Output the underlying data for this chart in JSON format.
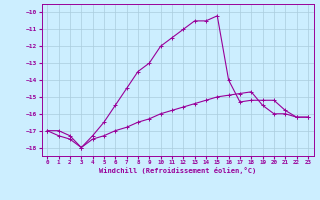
{
  "xlabel": "Windchill (Refroidissement éolien,°C)",
  "bg_color": "#cceeff",
  "grid_color": "#aaccdd",
  "line_color": "#990099",
  "xlim": [
    -0.5,
    23.5
  ],
  "ylim": [
    -18.5,
    -9.5
  ],
  "yticks": [
    -18,
    -17,
    -16,
    -15,
    -14,
    -13,
    -12,
    -11,
    -10
  ],
  "xticks": [
    0,
    1,
    2,
    3,
    4,
    5,
    6,
    7,
    8,
    9,
    10,
    11,
    12,
    13,
    14,
    15,
    16,
    17,
    18,
    19,
    20,
    21,
    22,
    23
  ],
  "series1_x": [
    0,
    1,
    2,
    3,
    4,
    5,
    6,
    7,
    8,
    9,
    10,
    11,
    12,
    13,
    14,
    15,
    16,
    17,
    18,
    19,
    20,
    21,
    22,
    23
  ],
  "series1_y": [
    -17.0,
    -17.3,
    -17.5,
    -18.0,
    -17.5,
    -17.3,
    -17.0,
    -16.8,
    -16.5,
    -16.3,
    -16.0,
    -15.8,
    -15.6,
    -15.4,
    -15.2,
    -15.0,
    -14.9,
    -14.8,
    -14.7,
    -15.5,
    -16.0,
    -16.0,
    -16.2,
    -16.2
  ],
  "series2_x": [
    0,
    1,
    2,
    3,
    4,
    5,
    6,
    7,
    8,
    9,
    10,
    11,
    12,
    13,
    14,
    15,
    16,
    17,
    18,
    19,
    20,
    21,
    22,
    23
  ],
  "series2_y": [
    -17.0,
    -17.0,
    -17.3,
    -18.0,
    -17.3,
    -16.5,
    -15.5,
    -14.5,
    -13.5,
    -13.0,
    -12.0,
    -11.5,
    -11.0,
    -10.5,
    -10.5,
    -10.2,
    -14.0,
    -15.3,
    -15.2,
    -15.2,
    -15.2,
    -15.8,
    -16.2,
    -16.2
  ]
}
